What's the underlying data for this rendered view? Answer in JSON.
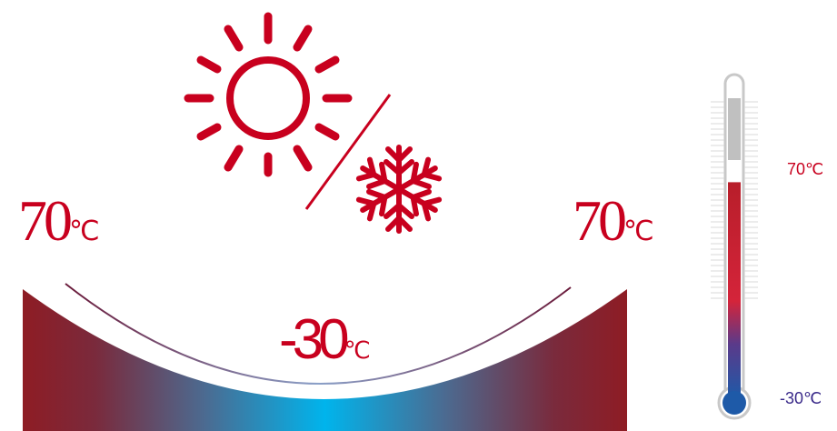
{
  "left_temp": {
    "value": "70",
    "unit": "℃"
  },
  "right_temp": {
    "value": "70",
    "unit": "℃"
  },
  "center_temp": {
    "value": "-30",
    "unit": "℃"
  },
  "thermometer": {
    "max_label": "70℃",
    "min_label": "-30℃",
    "fill_level": 0.72
  },
  "icons": {
    "sun": "sun-icon",
    "snowflake": "snowflake-icon",
    "divider": "slash-divider"
  },
  "colors": {
    "red": "#c8001e",
    "dark_red": "#8e1c24",
    "blue": "#00b4ec",
    "navy": "#1e5aa8",
    "purple_label": "#3a2a8a",
    "glass": "#c8c8c8"
  }
}
